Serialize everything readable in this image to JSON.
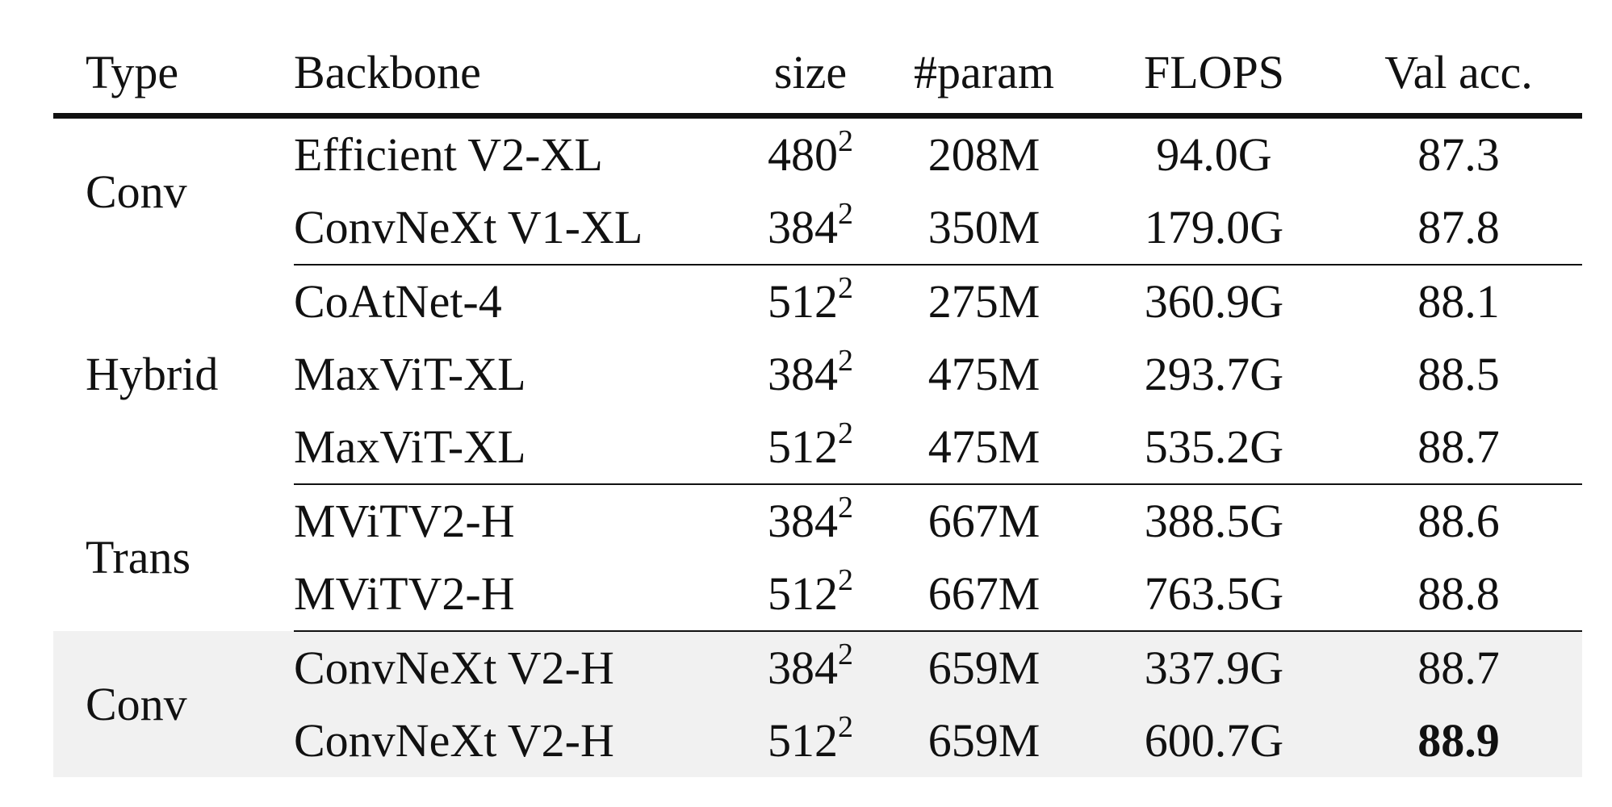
{
  "table": {
    "headers": {
      "type": "Type",
      "backbone": "Backbone",
      "size": "size",
      "param": "#param",
      "flops": "FLOPS",
      "acc": "Val acc."
    },
    "groups": [
      {
        "type": "Conv",
        "rows": [
          {
            "backbone": "Efficient V2-XL",
            "size": "480",
            "size_exp": "2",
            "param": "208M",
            "flops": "94.0G",
            "acc": "87.3"
          },
          {
            "backbone": "ConvNeXt V1-XL",
            "size": "384",
            "size_exp": "2",
            "param": "350M",
            "flops": "179.0G",
            "acc": "87.8"
          }
        ]
      },
      {
        "type": "Hybrid",
        "rows": [
          {
            "backbone": "CoAtNet-4",
            "size": "512",
            "size_exp": "2",
            "param": "275M",
            "flops": "360.9G",
            "acc": "88.1"
          },
          {
            "backbone": "MaxViT-XL",
            "size": "384",
            "size_exp": "2",
            "param": "475M",
            "flops": "293.7G",
            "acc": "88.5"
          },
          {
            "backbone": "MaxViT-XL",
            "size": "512",
            "size_exp": "2",
            "param": "475M",
            "flops": "535.2G",
            "acc": "88.7"
          }
        ]
      },
      {
        "type": "Trans",
        "rows": [
          {
            "backbone": "MViTV2-H",
            "size": "384",
            "size_exp": "2",
            "param": "667M",
            "flops": "388.5G",
            "acc": "88.6"
          },
          {
            "backbone": "MViTV2-H",
            "size": "512",
            "size_exp": "2",
            "param": "667M",
            "flops": "763.5G",
            "acc": "88.8"
          }
        ]
      },
      {
        "type": "Conv",
        "highlighted": true,
        "rows": [
          {
            "backbone": "ConvNeXt V2-H",
            "size": "384",
            "size_exp": "2",
            "param": "659M",
            "flops": "337.9G",
            "acc": "88.7"
          },
          {
            "backbone": "ConvNeXt V2-H",
            "size": "512",
            "size_exp": "2",
            "param": "659M",
            "flops": "600.7G",
            "acc": "88.9",
            "acc_bold": true
          }
        ]
      }
    ],
    "colors": {
      "highlight_bg": "#f1f1f1",
      "text": "#111111"
    }
  }
}
